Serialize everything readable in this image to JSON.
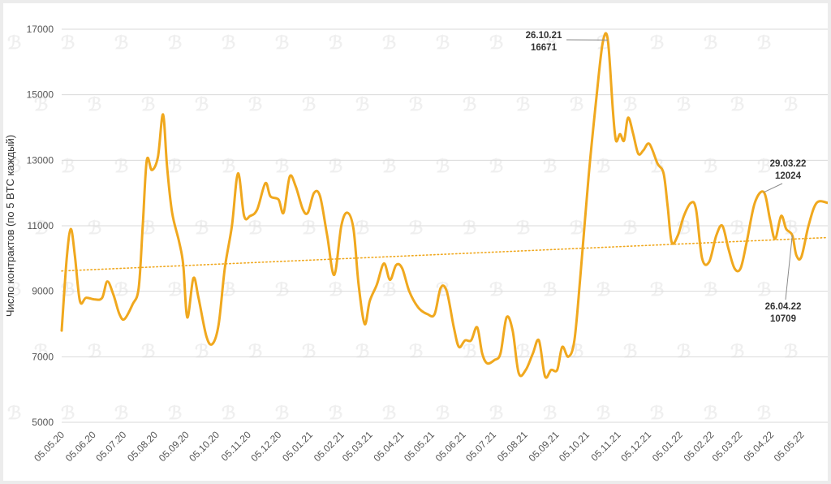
{
  "chart_data": {
    "type": "line",
    "ylabel": "Число контрактов (по 5 BTC каждый)",
    "ylim": [
      5000,
      17000
    ],
    "yticks": [
      5000,
      7000,
      9000,
      11000,
      13000,
      15000,
      17000
    ],
    "x_range": [
      "2020-05-05",
      "2022-05-31"
    ],
    "xticks": [
      "05.05.20",
      "05.06.20",
      "05.07.20",
      "05.08.20",
      "05.09.20",
      "05.10.20",
      "05.11.20",
      "05.12.20",
      "05.01.21",
      "05.02.21",
      "05.03.21",
      "05.04.21",
      "05.05.21",
      "05.06.21",
      "05.07.21",
      "05.08.21",
      "05.09.21",
      "05.10.21",
      "05.11.21",
      "05.12.21",
      "05.01.22",
      "05.02.22",
      "05.03.22",
      "05.04.22",
      "05.05.22"
    ],
    "grid": "horizontal",
    "colors": {
      "line": "#f0a81e",
      "trend": "#f0a81e"
    },
    "series": [
      {
        "type": "line",
        "points": [
          [
            "2020-05-05",
            7800
          ],
          [
            "2020-05-10",
            10000
          ],
          [
            "2020-05-14",
            10900
          ],
          [
            "2020-05-18",
            10100
          ],
          [
            "2020-05-23",
            8700
          ],
          [
            "2020-05-29",
            8800
          ],
          [
            "2020-06-07",
            8750
          ],
          [
            "2020-06-14",
            8800
          ],
          [
            "2020-06-19",
            9300
          ],
          [
            "2020-06-25",
            8900
          ],
          [
            "2020-07-01",
            8300
          ],
          [
            "2020-07-06",
            8150
          ],
          [
            "2020-07-14",
            8600
          ],
          [
            "2020-07-20",
            9100
          ],
          [
            "2020-07-24",
            11000
          ],
          [
            "2020-07-28",
            13000
          ],
          [
            "2020-08-02",
            12700
          ],
          [
            "2020-08-08",
            13100
          ],
          [
            "2020-08-13",
            14400
          ],
          [
            "2020-08-17",
            12800
          ],
          [
            "2020-08-22",
            11400
          ],
          [
            "2020-08-29",
            10500
          ],
          [
            "2020-09-02",
            9800
          ],
          [
            "2020-09-06",
            8200
          ],
          [
            "2020-09-12",
            9400
          ],
          [
            "2020-09-17",
            8800
          ],
          [
            "2020-09-25",
            7600
          ],
          [
            "2020-10-01",
            7400
          ],
          [
            "2020-10-07",
            8000
          ],
          [
            "2020-10-13",
            9700
          ],
          [
            "2020-10-20",
            11000
          ],
          [
            "2020-10-26",
            12600
          ],
          [
            "2020-11-01",
            11300
          ],
          [
            "2020-11-07",
            11300
          ],
          [
            "2020-11-14",
            11500
          ],
          [
            "2020-11-22",
            12300
          ],
          [
            "2020-11-27",
            11900
          ],
          [
            "2020-12-05",
            11800
          ],
          [
            "2020-12-10",
            11400
          ],
          [
            "2020-12-16",
            12500
          ],
          [
            "2020-12-22",
            12200
          ],
          [
            "2020-12-29",
            11500
          ],
          [
            "2021-01-03",
            11400
          ],
          [
            "2021-01-09",
            12000
          ],
          [
            "2021-01-15",
            11900
          ],
          [
            "2021-01-22",
            10700
          ],
          [
            "2021-01-29",
            9500
          ],
          [
            "2021-02-05",
            11000
          ],
          [
            "2021-02-11",
            11400
          ],
          [
            "2021-02-17",
            10900
          ],
          [
            "2021-02-22",
            9200
          ],
          [
            "2021-02-28",
            8000
          ],
          [
            "2021-03-05",
            8700
          ],
          [
            "2021-03-12",
            9200
          ],
          [
            "2021-03-19",
            9850
          ],
          [
            "2021-03-25",
            9350
          ],
          [
            "2021-03-31",
            9800
          ],
          [
            "2021-04-06",
            9700
          ],
          [
            "2021-04-13",
            9000
          ],
          [
            "2021-04-22",
            8500
          ],
          [
            "2021-05-01",
            8300
          ],
          [
            "2021-05-08",
            8300
          ],
          [
            "2021-05-14",
            9100
          ],
          [
            "2021-05-20",
            9000
          ],
          [
            "2021-05-27",
            7900
          ],
          [
            "2021-06-01",
            7300
          ],
          [
            "2021-06-07",
            7500
          ],
          [
            "2021-06-13",
            7500
          ],
          [
            "2021-06-19",
            7900
          ],
          [
            "2021-06-24",
            7100
          ],
          [
            "2021-06-29",
            6800
          ],
          [
            "2021-07-06",
            6900
          ],
          [
            "2021-07-12",
            7100
          ],
          [
            "2021-07-18",
            8200
          ],
          [
            "2021-07-24",
            7800
          ],
          [
            "2021-07-30",
            6500
          ],
          [
            "2021-08-06",
            6600
          ],
          [
            "2021-08-13",
            7100
          ],
          [
            "2021-08-19",
            7500
          ],
          [
            "2021-08-25",
            6400
          ],
          [
            "2021-08-31",
            6600
          ],
          [
            "2021-09-06",
            6600
          ],
          [
            "2021-09-11",
            7300
          ],
          [
            "2021-09-17",
            7000
          ],
          [
            "2021-09-23",
            7500
          ],
          [
            "2021-09-29",
            9500
          ],
          [
            "2021-10-07",
            12500
          ],
          [
            "2021-10-15",
            15000
          ],
          [
            "2021-10-21",
            16600
          ],
          [
            "2021-10-26",
            16671
          ],
          [
            "2021-10-31",
            14500
          ],
          [
            "2021-11-03",
            13600
          ],
          [
            "2021-11-07",
            13800
          ],
          [
            "2021-11-11",
            13600
          ],
          [
            "2021-11-15",
            14300
          ],
          [
            "2021-11-20",
            13800
          ],
          [
            "2021-11-25",
            13200
          ],
          [
            "2021-11-30",
            13300
          ],
          [
            "2021-12-06",
            13500
          ],
          [
            "2021-12-14",
            12900
          ],
          [
            "2021-12-20",
            12600
          ],
          [
            "2021-12-24",
            11600
          ],
          [
            "2021-12-28",
            10500
          ],
          [
            "2022-01-03",
            10700
          ],
          [
            "2022-01-09",
            11300
          ],
          [
            "2022-01-16",
            11700
          ],
          [
            "2022-01-21",
            11500
          ],
          [
            "2022-01-27",
            10000
          ],
          [
            "2022-02-03",
            9900
          ],
          [
            "2022-02-10",
            10700
          ],
          [
            "2022-02-16",
            11000
          ],
          [
            "2022-02-22",
            10300
          ],
          [
            "2022-02-28",
            9700
          ],
          [
            "2022-03-06",
            9700
          ],
          [
            "2022-03-12",
            10500
          ],
          [
            "2022-03-20",
            11700
          ],
          [
            "2022-03-29",
            12024
          ],
          [
            "2022-04-04",
            11200
          ],
          [
            "2022-04-09",
            10600
          ],
          [
            "2022-04-15",
            11300
          ],
          [
            "2022-04-20",
            10900
          ],
          [
            "2022-04-26",
            10709
          ],
          [
            "2022-04-30",
            10100
          ],
          [
            "2022-05-05",
            10050
          ],
          [
            "2022-05-12",
            11000
          ],
          [
            "2022-05-20",
            11700
          ],
          [
            "2022-05-31",
            11700
          ]
        ]
      },
      {
        "type": "trendline",
        "style": "dotted",
        "points": [
          [
            "2020-05-05",
            9620
          ],
          [
            "2022-05-31",
            10640
          ]
        ]
      }
    ],
    "annotations": [
      {
        "date": "2021-10-26",
        "value": 16671,
        "label_date": "26.10.21",
        "label_value": "16671"
      },
      {
        "date": "2022-03-29",
        "value": 12024,
        "label_date": "29.03.22",
        "label_value": "12024"
      },
      {
        "date": "2022-04-26",
        "value": 10709,
        "label_date": "26.04.22",
        "label_value": "10709"
      }
    ]
  }
}
